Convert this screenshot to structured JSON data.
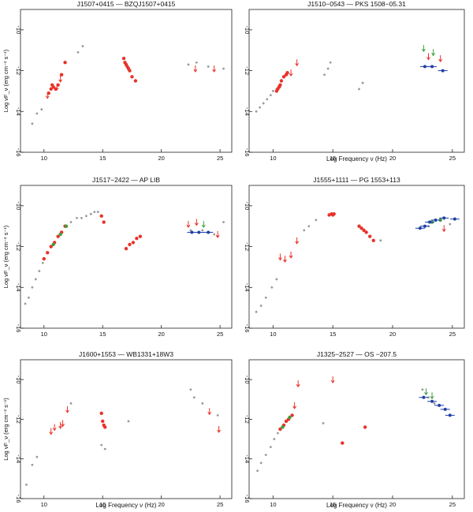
{
  "chart_data": [
    {
      "type": "scatter",
      "title": "J1507+0415  —  BZQJ1507+0415",
      "xlabel": "",
      "ylabel": "Log νF_ν (erg cm⁻² s⁻¹)",
      "xlim": [
        8,
        26
      ],
      "ylim": [
        -16,
        -9
      ],
      "x_ticks": [
        "10",
        "15",
        "20",
        "25"
      ],
      "y_ticks": [
        "-10",
        "-12",
        "-14",
        "-16"
      ],
      "series": [
        {
          "color": "#9a9a9a",
          "kind": "point",
          "points": [
            [
              9.0,
              -14.6
            ],
            [
              9.4,
              -14.1
            ],
            [
              9.8,
              -13.9
            ],
            [
              12.9,
              -11.1
            ],
            [
              13.3,
              -10.8
            ],
            [
              22.3,
              -11.7
            ],
            [
              23.0,
              -11.6
            ],
            [
              24.0,
              -11.8
            ],
            [
              25.3,
              -11.9
            ]
          ]
        },
        {
          "color": "#e8332a",
          "kind": "point",
          "points": [
            [
              10.4,
              -13.1
            ],
            [
              10.6,
              -12.9
            ],
            [
              10.7,
              -12.7
            ],
            [
              10.8,
              -12.8
            ],
            [
              11.0,
              -12.9
            ],
            [
              11.2,
              -12.7
            ],
            [
              11.5,
              -12.2
            ],
            [
              11.8,
              -11.6
            ],
            [
              16.8,
              -11.4
            ],
            [
              16.9,
              -11.6
            ],
            [
              17.0,
              -11.7
            ],
            [
              17.1,
              -11.8
            ],
            [
              17.2,
              -11.9
            ],
            [
              17.3,
              -12.0
            ],
            [
              17.5,
              -12.3
            ],
            [
              17.8,
              -12.5
            ]
          ]
        },
        {
          "color": "#e8332a",
          "kind": "upper_limit",
          "points": [
            [
              10.3,
              -13.2
            ],
            [
              11.1,
              -12.8
            ],
            [
              11.4,
              -12.4
            ],
            [
              22.9,
              -11.9
            ],
            [
              24.5,
              -11.9
            ]
          ]
        }
      ]
    },
    {
      "type": "scatter",
      "title": "J1510−0543  —  PKS 1508−05.31",
      "xlabel": "Log Frequency ν (Hz)",
      "ylabel": "",
      "xlim": [
        8,
        26
      ],
      "ylim": [
        -16,
        -9
      ],
      "x_ticks": [
        "10",
        "15",
        "20",
        "25"
      ],
      "y_ticks": [
        "-10",
        "-12",
        "-14",
        "-16"
      ],
      "series": [
        {
          "color": "#9a9a9a",
          "kind": "point",
          "points": [
            [
              8.6,
              -14.0
            ],
            [
              8.9,
              -13.8
            ],
            [
              9.2,
              -13.6
            ],
            [
              9.5,
              -13.4
            ],
            [
              9.8,
              -13.2
            ],
            [
              10.0,
              -13.0
            ],
            [
              10.3,
              -12.9
            ],
            [
              10.6,
              -12.8
            ],
            [
              14.3,
              -12.2
            ],
            [
              14.6,
              -11.9
            ],
            [
              14.8,
              -11.6
            ],
            [
              17.2,
              -12.9
            ],
            [
              17.5,
              -12.6
            ]
          ]
        },
        {
          "color": "#e8332a",
          "kind": "point",
          "points": [
            [
              10.3,
              -13.0
            ],
            [
              10.4,
              -12.9
            ],
            [
              10.5,
              -12.8
            ],
            [
              10.6,
              -12.7
            ],
            [
              10.7,
              -12.5
            ],
            [
              10.9,
              -12.3
            ],
            [
              11.1,
              -12.2
            ],
            [
              11.2,
              -12.1
            ]
          ]
        },
        {
          "color": "#e8332a",
          "kind": "upper_limit",
          "points": [
            [
              11.5,
              -12.1
            ],
            [
              12.0,
              -11.6
            ],
            [
              23.0,
              -11.3
            ],
            [
              24.0,
              -11.4
            ]
          ]
        },
        {
          "color": "#3ea03e",
          "kind": "upper_limit",
          "points": [
            [
              22.6,
              -10.9
            ],
            [
              23.4,
              -11.1
            ]
          ]
        },
        {
          "color": "#1f3fa8",
          "kind": "point_err",
          "points": [
            [
              22.7,
              -11.8
            ],
            [
              23.3,
              -11.8
            ],
            [
              24.2,
              -12.0
            ]
          ]
        }
      ]
    },
    {
      "type": "scatter",
      "title": "J1517−2422  —  AP LIB",
      "xlabel": "",
      "ylabel": "Log νF_ν (erg cm⁻² s⁻¹)",
      "xlim": [
        8,
        26
      ],
      "ylim": [
        -16,
        -9
      ],
      "x_ticks": [
        "10",
        "15",
        "20",
        "25"
      ],
      "y_ticks": [
        "-10",
        "-12",
        "-14",
        "-16"
      ],
      "series": [
        {
          "color": "#9a9a9a",
          "kind": "point",
          "points": [
            [
              8.4,
              -14.8
            ],
            [
              8.7,
              -14.5
            ],
            [
              9.0,
              -14.0
            ],
            [
              9.3,
              -13.6
            ],
            [
              9.6,
              -13.2
            ],
            [
              9.9,
              -12.8
            ],
            [
              12.3,
              -10.8
            ],
            [
              12.8,
              -10.6
            ],
            [
              13.2,
              -10.6
            ],
            [
              13.6,
              -10.5
            ],
            [
              14.0,
              -10.4
            ],
            [
              14.3,
              -10.3
            ],
            [
              14.6,
              -10.3
            ],
            [
              22.5,
              -11.2
            ],
            [
              23.5,
              -11.2
            ],
            [
              24.5,
              -11.4
            ],
            [
              25.3,
              -10.8
            ]
          ]
        },
        {
          "color": "#e8332a",
          "kind": "point",
          "points": [
            [
              10.0,
              -12.6
            ],
            [
              10.3,
              -12.3
            ],
            [
              10.6,
              -12.0
            ],
            [
              10.9,
              -11.8
            ],
            [
              11.2,
              -11.5
            ],
            [
              11.5,
              -11.3
            ],
            [
              11.8,
              -11.0
            ],
            [
              14.9,
              -10.5
            ],
            [
              15.1,
              -10.8
            ],
            [
              17.0,
              -12.1
            ],
            [
              17.3,
              -11.9
            ],
            [
              17.6,
              -11.8
            ],
            [
              17.9,
              -11.6
            ],
            [
              18.2,
              -11.5
            ]
          ]
        },
        {
          "color": "#3ea03e",
          "kind": "point",
          "points": [
            [
              10.8,
              -11.9
            ],
            [
              11.4,
              -11.4
            ],
            [
              11.9,
              -11.0
            ]
          ]
        },
        {
          "color": "#e8332a",
          "kind": "upper_limit",
          "points": [
            [
              22.3,
              -10.9
            ],
            [
              23.0,
              -10.8
            ],
            [
              24.8,
              -11.4
            ]
          ]
        },
        {
          "color": "#3ea03e",
          "kind": "upper_limit",
          "points": [
            [
              23.6,
              -10.9
            ]
          ]
        },
        {
          "color": "#1f3fa8",
          "kind": "point_err",
          "points": [
            [
              22.6,
              -11.3
            ],
            [
              23.2,
              -11.3
            ],
            [
              24.0,
              -11.3
            ]
          ]
        }
      ]
    },
    {
      "type": "scatter",
      "title": "J1555+1111  —  PG 1553+113",
      "xlabel": "",
      "ylabel": "",
      "xlim": [
        8,
        26
      ],
      "ylim": [
        -16,
        -9
      ],
      "x_ticks": [
        "10",
        "15",
        "20",
        "25"
      ],
      "y_ticks": [
        "-10",
        "-12",
        "-14",
        "-16"
      ],
      "series": [
        {
          "color": "#9a9a9a",
          "kind": "point",
          "points": [
            [
              8.6,
              -15.2
            ],
            [
              9.0,
              -14.9
            ],
            [
              9.4,
              -14.5
            ],
            [
              9.9,
              -14.0
            ],
            [
              10.3,
              -13.6
            ],
            [
              12.6,
              -11.2
            ],
            [
              13.0,
              -11.0
            ],
            [
              13.6,
              -10.7
            ],
            [
              19.0,
              -11.7
            ],
            [
              23.0,
              -11.0
            ],
            [
              24.8,
              -10.9
            ]
          ]
        },
        {
          "color": "#e8332a",
          "kind": "point",
          "points": [
            [
              14.7,
              -10.45
            ],
            [
              14.9,
              -10.4
            ],
            [
              15.0,
              -10.45
            ],
            [
              15.1,
              -10.4
            ],
            [
              17.2,
              -11.0
            ],
            [
              17.4,
              -11.1
            ],
            [
              17.6,
              -11.2
            ],
            [
              17.8,
              -11.3
            ],
            [
              18.1,
              -11.5
            ],
            [
              18.4,
              -11.7
            ]
          ]
        },
        {
          "color": "#e8332a",
          "kind": "upper_limit",
          "points": [
            [
              10.6,
              -12.5
            ],
            [
              11.0,
              -12.6
            ],
            [
              11.5,
              -12.4
            ],
            [
              12.0,
              -11.7
            ],
            [
              24.3,
              -11.1
            ]
          ]
        },
        {
          "color": "#3ea03e",
          "kind": "point",
          "points": [
            [
              23.3,
              -10.8
            ],
            [
              24.0,
              -10.7
            ]
          ]
        },
        {
          "color": "#1f3fa8",
          "kind": "point_err",
          "points": [
            [
              22.3,
              -11.1
            ],
            [
              22.7,
              -11.0
            ],
            [
              23.1,
              -10.8
            ],
            [
              23.6,
              -10.7
            ],
            [
              24.3,
              -10.6
            ],
            [
              25.2,
              -10.65
            ]
          ]
        }
      ]
    },
    {
      "type": "scatter",
      "title": "J1600+1553  —  WB1331+18W3",
      "xlabel": "Log Frequency ν (Hz)",
      "ylabel": "Log νF_ν (erg cm⁻² s⁻¹)",
      "xlim": [
        8,
        26
      ],
      "ylim": [
        -16,
        -9
      ],
      "x_ticks": [
        "10",
        "15",
        "20",
        "25"
      ],
      "y_ticks": [
        "-10",
        "-12",
        "-14",
        "-16"
      ],
      "series": [
        {
          "color": "#9a9a9a",
          "kind": "point",
          "points": [
            [
              8.5,
              -15.3
            ],
            [
              9.0,
              -14.3
            ],
            [
              9.4,
              -13.9
            ],
            [
              12.3,
              -11.2
            ],
            [
              14.9,
              -13.3
            ],
            [
              15.2,
              -13.5
            ],
            [
              17.2,
              -12.1
            ],
            [
              22.5,
              -10.5
            ],
            [
              22.8,
              -10.9
            ],
            [
              23.5,
              -11.2
            ],
            [
              24.8,
              -11.8
            ]
          ]
        },
        {
          "color": "#e8332a",
          "kind": "point",
          "points": [
            [
              14.9,
              -11.7
            ],
            [
              15.0,
              -12.1
            ],
            [
              15.1,
              -12.3
            ],
            [
              15.2,
              -12.4
            ]
          ]
        },
        {
          "color": "#e8332a",
          "kind": "upper_limit",
          "points": [
            [
              10.6,
              -12.6
            ],
            [
              10.9,
              -12.4
            ],
            [
              11.4,
              -12.3
            ],
            [
              11.6,
              -12.2
            ],
            [
              12.0,
              -11.5
            ],
            [
              24.1,
              -11.6
            ],
            [
              24.9,
              -12.5
            ]
          ]
        }
      ]
    },
    {
      "type": "scatter",
      "title": "J1325−2527  —  OS −207.5",
      "xlabel": "Log Frequency ν (Hz)",
      "ylabel": "",
      "xlim": [
        8,
        26
      ],
      "ylim": [
        -16,
        -9
      ],
      "x_ticks": [
        "10",
        "15",
        "20",
        "25"
      ],
      "y_ticks": [
        "-10",
        "-12",
        "-14",
        "-16"
      ],
      "series": [
        {
          "color": "#9a9a9a",
          "kind": "point",
          "points": [
            [
              8.7,
              -14.6
            ],
            [
              9.0,
              -14.2
            ],
            [
              9.4,
              -13.8
            ],
            [
              9.8,
              -13.4
            ],
            [
              10.1,
              -13.0
            ],
            [
              10.4,
              -12.7
            ],
            [
              14.2,
              -12.2
            ],
            [
              22.5,
              -10.5
            ],
            [
              23.0,
              -10.9
            ],
            [
              23.5,
              -11.2
            ]
          ]
        },
        {
          "color": "#e8332a",
          "kind": "point",
          "points": [
            [
              10.6,
              -12.5
            ],
            [
              10.9,
              -12.3
            ],
            [
              11.1,
              -12.1
            ],
            [
              11.3,
              -12.0
            ],
            [
              11.6,
              -11.8
            ],
            [
              15.8,
              -13.2
            ],
            [
              17.7,
              -12.4
            ]
          ]
        },
        {
          "color": "#3ea03e",
          "kind": "point",
          "points": [
            [
              10.8,
              -12.4
            ],
            [
              11.4,
              -11.9
            ]
          ]
        },
        {
          "color": "#e8332a",
          "kind": "upper_limit",
          "points": [
            [
              11.8,
              -11.3
            ],
            [
              12.1,
              -10.2
            ],
            [
              15.0,
              -10.0
            ]
          ]
        },
        {
          "color": "#3ea03e",
          "kind": "upper_limit",
          "points": [
            [
              22.8,
              -10.6
            ],
            [
              23.3,
              -10.8
            ]
          ]
        },
        {
          "color": "#1f3fa8",
          "kind": "point_err",
          "points": [
            [
              22.6,
              -10.9
            ],
            [
              23.3,
              -11.1
            ],
            [
              23.9,
              -11.3
            ],
            [
              24.4,
              -11.5
            ],
            [
              24.8,
              -11.8
            ]
          ]
        }
      ]
    }
  ]
}
